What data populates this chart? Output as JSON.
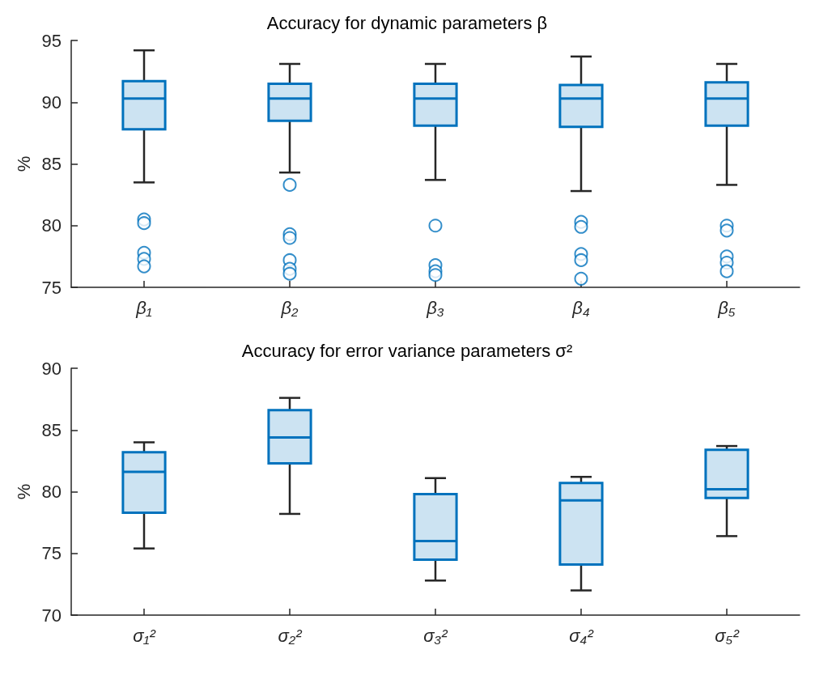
{
  "chart_data": [
    {
      "type": "box",
      "title": "Accuracy for dynamic parameters β",
      "ylabel": "%",
      "categories": [
        "β₁",
        "β₂",
        "β₃",
        "β₄",
        "β₅"
      ],
      "color": "#0072bd",
      "ylim": [
        75,
        95
      ],
      "yticks": [
        75,
        80,
        85,
        90,
        95
      ],
      "grid": false,
      "boxes": [
        {
          "low": 83.5,
          "q1": 87.8,
          "median": 90.3,
          "q3": 91.7,
          "high": 94.2,
          "outliers": [
            80.5,
            80.2,
            77.8,
            77.3,
            76.7
          ]
        },
        {
          "low": 84.3,
          "q1": 88.5,
          "median": 90.3,
          "q3": 91.5,
          "high": 93.1,
          "outliers": [
            83.3,
            79.3,
            79.0,
            77.2,
            76.5,
            76.1
          ]
        },
        {
          "low": 83.7,
          "q1": 88.1,
          "median": 90.3,
          "q3": 91.5,
          "high": 93.1,
          "outliers": [
            80.0,
            76.8,
            76.3,
            76.0
          ]
        },
        {
          "low": 82.8,
          "q1": 88.0,
          "median": 90.3,
          "q3": 91.4,
          "high": 93.7,
          "outliers": [
            80.3,
            79.9,
            77.7,
            77.2,
            75.7
          ]
        },
        {
          "low": 83.3,
          "q1": 88.1,
          "median": 90.3,
          "q3": 91.6,
          "high": 93.1,
          "outliers": [
            80.0,
            79.6,
            77.5,
            77.0,
            76.3
          ]
        }
      ]
    },
    {
      "type": "box",
      "title": "Accuracy for error variance parameters σ²",
      "ylabel": "%",
      "categories": [
        "σ₁²",
        "σ₂²",
        "σ₃²",
        "σ₄²",
        "σ₅²"
      ],
      "color": "#0072bd",
      "ylim": [
        70,
        90
      ],
      "yticks": [
        70,
        75,
        80,
        85,
        90
      ],
      "grid": false,
      "boxes": [
        {
          "low": 75.4,
          "q1": 78.3,
          "median": 81.6,
          "q3": 83.2,
          "high": 84.0
        },
        {
          "low": 78.2,
          "q1": 82.3,
          "median": 84.4,
          "q3": 86.6,
          "high": 87.6
        },
        {
          "low": 72.8,
          "q1": 74.5,
          "median": 76.0,
          "q3": 79.8,
          "high": 81.1
        },
        {
          "low": 72.0,
          "q1": 74.1,
          "median": 79.3,
          "q3": 80.7,
          "high": 81.2
        },
        {
          "low": 76.4,
          "q1": 79.5,
          "median": 80.2,
          "q3": 83.4,
          "high": 83.7
        }
      ]
    }
  ]
}
